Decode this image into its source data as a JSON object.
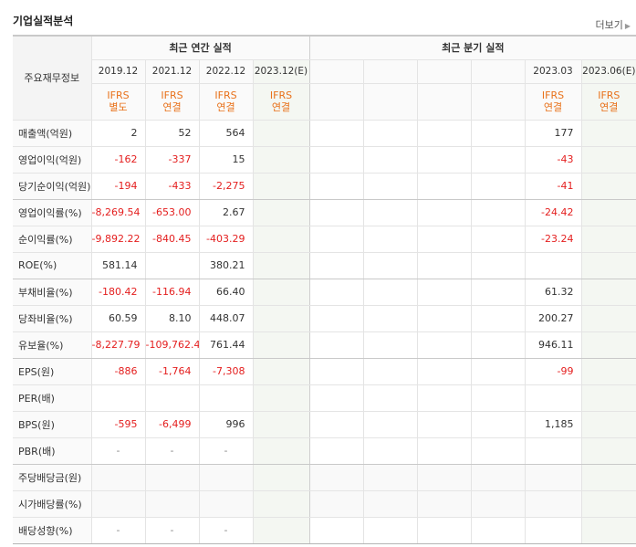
{
  "header": {
    "title": "기업실적분석",
    "more_label": "더보기"
  },
  "table": {
    "corner_label": "주요재무정보",
    "groups": {
      "annual": "최근 연간 실적",
      "quarterly": "최근 분기 실적"
    },
    "periods": [
      "2019.12",
      "2021.12",
      "2022.12",
      "2023.12(E)",
      "",
      "",
      "",
      "",
      "2023.03",
      "2023.06(E)"
    ],
    "standards": [
      [
        "IFRS",
        "별도"
      ],
      [
        "IFRS",
        "연결"
      ],
      [
        "IFRS",
        "연결"
      ],
      [
        "IFRS",
        "연결"
      ],
      [
        "",
        ""
      ],
      [
        "",
        ""
      ],
      [
        "",
        ""
      ],
      [
        "",
        ""
      ],
      [
        "IFRS",
        "연결"
      ],
      [
        "IFRS",
        "연결"
      ]
    ],
    "rows": [
      {
        "label": "매출액(억원)",
        "values": [
          "2",
          "52",
          "564",
          "",
          "",
          "",
          "",
          "",
          "177",
          ""
        ]
      },
      {
        "label": "영업이익(억원)",
        "values": [
          "-162",
          "-337",
          "15",
          "",
          "",
          "",
          "",
          "",
          "-43",
          ""
        ]
      },
      {
        "label": "당기순이익(억원)",
        "values": [
          "-194",
          "-433",
          "-2,275",
          "",
          "",
          "",
          "",
          "",
          "-41",
          ""
        ]
      },
      {
        "label": "영업이익률(%)",
        "values": [
          "-8,269.54",
          "-653.00",
          "2.67",
          "",
          "",
          "",
          "",
          "",
          "-24.42",
          ""
        ]
      },
      {
        "label": "순이익률(%)",
        "values": [
          "-9,892.22",
          "-840.45",
          "-403.29",
          "",
          "",
          "",
          "",
          "",
          "-23.24",
          ""
        ]
      },
      {
        "label": "ROE(%)",
        "values": [
          "581.14",
          "",
          "380.21",
          "",
          "",
          "",
          "",
          "",
          "",
          ""
        ]
      },
      {
        "label": "부채비율(%)",
        "values": [
          "-180.42",
          "-116.94",
          "66.40",
          "",
          "",
          "",
          "",
          "",
          "61.32",
          ""
        ]
      },
      {
        "label": "당좌비율(%)",
        "values": [
          "60.59",
          "8.10",
          "448.07",
          "",
          "",
          "",
          "",
          "",
          "200.27",
          ""
        ]
      },
      {
        "label": "유보율(%)",
        "values": [
          "-8,227.79",
          "-109,762.41",
          "761.44",
          "",
          "",
          "",
          "",
          "",
          "946.11",
          ""
        ]
      },
      {
        "label": "EPS(원)",
        "values": [
          "-886",
          "-1,764",
          "-7,308",
          "",
          "",
          "",
          "",
          "",
          "-99",
          ""
        ]
      },
      {
        "label": "PER(배)",
        "values": [
          "",
          "",
          "",
          "",
          "",
          "",
          "",
          "",
          "",
          ""
        ]
      },
      {
        "label": "BPS(원)",
        "values": [
          "-595",
          "-6,499",
          "996",
          "",
          "",
          "",
          "",
          "",
          "1,185",
          ""
        ]
      },
      {
        "label": "PBR(배)",
        "values": [
          "-",
          "-",
          "-",
          "",
          "",
          "",
          "",
          "",
          "",
          ""
        ]
      },
      {
        "label": "주당배당금(원)",
        "values": [
          "",
          "",
          "",
          "",
          "",
          "",
          "",
          "",
          "",
          ""
        ]
      },
      {
        "label": "시가배당률(%)",
        "values": [
          "",
          "",
          "",
          "",
          "",
          "",
          "",
          "",
          "",
          ""
        ]
      },
      {
        "label": "배당성향(%)",
        "values": [
          "-",
          "-",
          "-",
          "",
          "",
          "",
          "",
          "",
          "",
          ""
        ]
      }
    ]
  },
  "colors": {
    "negative": "#e41e1e",
    "standard": "#e8711a",
    "estimate_bg": "#f4f7f2"
  }
}
